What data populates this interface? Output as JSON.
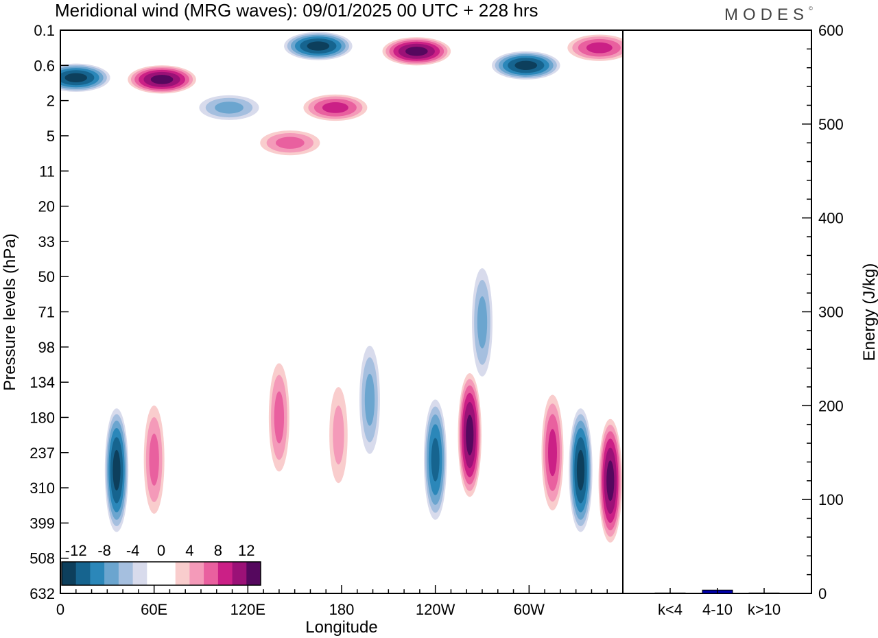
{
  "header": {
    "title": "Meridional wind (MRG waves):  09/01/2025  00 UTC  + 228 hrs",
    "logo": "MODES"
  },
  "chart_data": [
    {
      "type": "heatmap",
      "title": "Meridional wind (MRG waves):  09/01/2025  00 UTC  + 228 hrs",
      "xlabel": "Longitude",
      "ylabel": "Pressure levels (hPa)",
      "x_ticks": [
        "0",
        "60E",
        "120E",
        "180",
        "120W",
        "60W"
      ],
      "x_tick_positions_deg": [
        0,
        60,
        120,
        180,
        240,
        300
      ],
      "xlim_deg": [
        0,
        360
      ],
      "y_ticks": [
        "0.1",
        "0.6",
        "2",
        "5",
        "11",
        "20",
        "33",
        "50",
        "71",
        "98",
        "134",
        "180",
        "237",
        "310",
        "399",
        "508",
        "632"
      ],
      "contour_levels": [
        -14,
        -12,
        -10,
        -8,
        -6,
        -4,
        -2,
        2,
        4,
        6,
        8,
        10,
        12,
        14
      ],
      "colorbar": {
        "labels": [
          "-12",
          "-8",
          "-4",
          "0",
          "4",
          "8",
          "12"
        ],
        "colors": [
          "#0d3f5c",
          "#16648f",
          "#2b87b9",
          "#6ba5cf",
          "#a5bfdf",
          "#d8dbec",
          "#ffffff",
          "#ffffff",
          "#f9cdcd",
          "#f49ab9",
          "#e9609f",
          "#cb2086",
          "#9b1177",
          "#55085e"
        ]
      },
      "features": [
        {
          "type": "neg",
          "lon": 10,
          "level": 1.35,
          "value": -14
        },
        {
          "type": "pos",
          "lon": 65,
          "level": 1.4,
          "value": 14
        },
        {
          "type": "neg",
          "lon": 165,
          "level": 0.45,
          "value": -14
        },
        {
          "type": "pos",
          "lon": 228,
          "level": 0.6,
          "value": 14
        },
        {
          "type": "neg",
          "lon": 298,
          "level": 1.0,
          "value": -14
        },
        {
          "type": "pos",
          "lon": 345,
          "level": 0.5,
          "value": 10
        },
        {
          "type": "pos",
          "lon": 176,
          "level": 2.2,
          "value": 10
        },
        {
          "type": "pos",
          "lon": 147,
          "level": 3.2,
          "value": 8
        },
        {
          "type": "neg",
          "lon": 108,
          "level": 2.2,
          "value": -8
        },
        {
          "type": "neg",
          "lon": 36,
          "level": 12.5,
          "value": -14
        },
        {
          "type": "pos",
          "lon": 60,
          "level": 12.2,
          "value": 8
        },
        {
          "type": "pos",
          "lon": 140,
          "level": 11,
          "value": 8
        },
        {
          "type": "pos",
          "lon": 178,
          "level": 11.5,
          "value": 6
        },
        {
          "type": "neg",
          "lon": 198,
          "level": 10.5,
          "value": -8
        },
        {
          "type": "neg",
          "lon": 240,
          "level": 12.2,
          "value": -12
        },
        {
          "type": "pos",
          "lon": 262,
          "level": 11.5,
          "value": 14
        },
        {
          "type": "neg",
          "lon": 270,
          "level": 8.3,
          "value": -8
        },
        {
          "type": "pos",
          "lon": 315,
          "level": 12,
          "value": 10
        },
        {
          "type": "neg",
          "lon": 333,
          "level": 12.5,
          "value": -14
        },
        {
          "type": "pos",
          "lon": 352,
          "level": 12.8,
          "value": 14
        }
      ]
    },
    {
      "type": "bar",
      "categories": [
        "k<4",
        "4-10",
        "k>10"
      ],
      "values": [
        0.5,
        3.5,
        0.5
      ],
      "ylabel": "Energy (J/kg)",
      "ylim": [
        0,
        600
      ],
      "y_ticks": [
        "0",
        "100",
        "200",
        "300",
        "400",
        "500",
        "600"
      ],
      "bar_color": "#0000aa"
    }
  ]
}
